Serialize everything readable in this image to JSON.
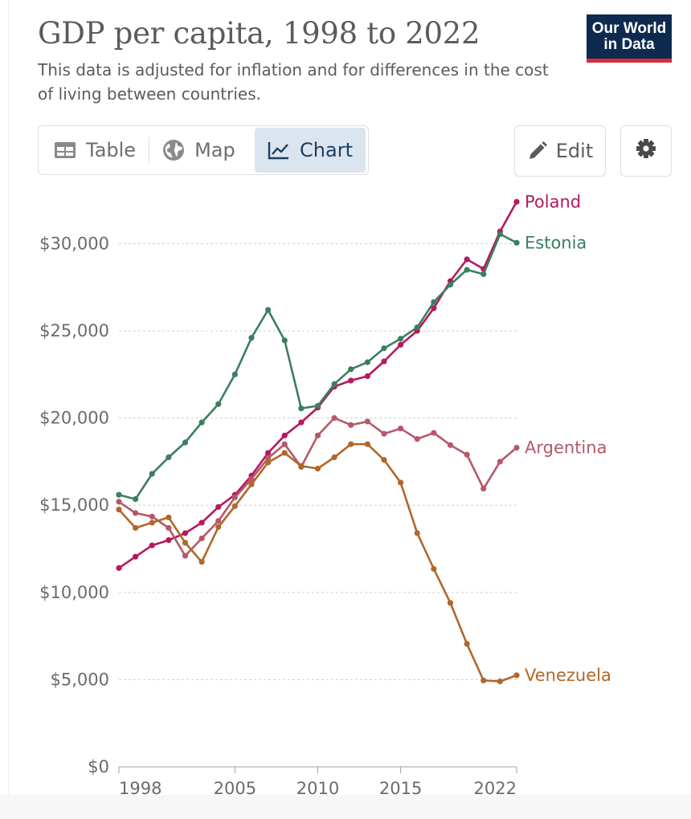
{
  "header": {
    "title": "GDP per capita, 1998 to 2022",
    "subtitle": "This data is adjusted for inflation and for differences in the cost of living between countries.",
    "logo_line1": "Our World",
    "logo_line2": "in Data"
  },
  "tabs": [
    {
      "label": "Table",
      "icon": "table-icon",
      "active": false
    },
    {
      "label": "Map",
      "icon": "globe-icon",
      "active": false
    },
    {
      "label": "Chart",
      "icon": "line-chart-icon",
      "active": true
    }
  ],
  "toolbar": {
    "edit_label": "Edit",
    "settings_icon": "gear-icon"
  },
  "colors": {
    "Poland": "#b5195f",
    "Estonia": "#3c7e5f",
    "Argentina": "#b6586a",
    "Venezuela": "#b0672a",
    "grid": "#cfcfcf",
    "text": "#6b6b6b"
  },
  "chart_data": {
    "type": "line",
    "title": "GDP per capita, 1998 to 2022",
    "subtitle": "This data is adjusted for inflation and for differences in the cost of living between countries.",
    "ylim": [
      0,
      32000
    ],
    "xlim": [
      1998,
      2022
    ],
    "yticks": [
      0,
      5000,
      10000,
      15000,
      20000,
      25000,
      30000
    ],
    "ytick_labels": [
      "$0",
      "$5,000",
      "$10,000",
      "$15,000",
      "$20,000",
      "$25,000",
      "$30,000"
    ],
    "xticks": [
      1998,
      2005,
      2010,
      2015,
      2022
    ],
    "xtick_labels": [
      "1998",
      "2005",
      "2010",
      "2015",
      "2022"
    ],
    "grid": "horizontal dashed",
    "legend": "labels at line ends (right)",
    "x": [
      1998,
      1999,
      2000,
      2001,
      2002,
      2003,
      2004,
      2005,
      2006,
      2007,
      2008,
      2009,
      2010,
      2011,
      2012,
      2013,
      2014,
      2015,
      2016,
      2017,
      2018,
      2019,
      2020,
      2021,
      2022
    ],
    "series": [
      {
        "name": "Poland",
        "values": [
          11400,
          12050,
          12700,
          13000,
          13400,
          14000,
          14900,
          15600,
          16700,
          18000,
          19000,
          19750,
          20600,
          21800,
          22150,
          22400,
          23250,
          24200,
          25000,
          26300,
          27850,
          29100,
          28550,
          30700,
          32400
        ]
      },
      {
        "name": "Estonia",
        "values": [
          15600,
          15350,
          16800,
          17750,
          18600,
          19750,
          20800,
          22500,
          24600,
          26200,
          24450,
          20550,
          20700,
          21950,
          22800,
          23200,
          24000,
          24550,
          25200,
          26650,
          27650,
          28500,
          28250,
          30550,
          30050
        ]
      },
      {
        "name": "Argentina",
        "values": [
          15200,
          14550,
          14350,
          13700,
          12100,
          13100,
          14100,
          15450,
          16500,
          17700,
          18500,
          17200,
          19000,
          20000,
          19600,
          19800,
          19100,
          19400,
          18800,
          19150,
          18450,
          17900,
          15950,
          17500,
          18300
        ]
      },
      {
        "name": "Venezuela",
        "values": [
          14750,
          13700,
          14000,
          14300,
          12850,
          11750,
          13750,
          14950,
          16200,
          17450,
          18000,
          17250,
          17100,
          17750,
          18500,
          18500,
          17600,
          16300,
          13400,
          11350,
          9400,
          7050,
          4950,
          4900,
          5250
        ]
      }
    ]
  }
}
